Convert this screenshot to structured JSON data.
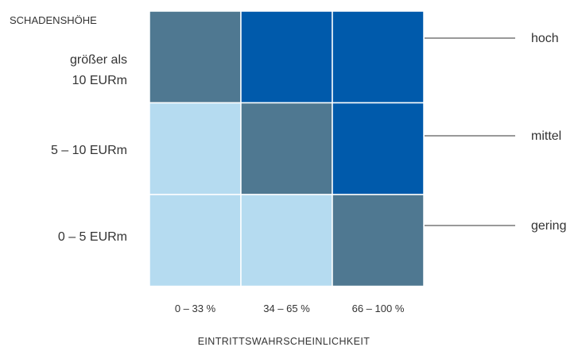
{
  "chart_data": {
    "type": "heatmap",
    "ylabel": "SCHADENSHÖHE",
    "xlabel": "EINTRITTSWAHRSCHEINLICHKEIT",
    "rows": [
      {
        "label_lines": [
          "größer als",
          "10 EURm"
        ]
      },
      {
        "label_lines": [
          "5 – 10 EURm"
        ]
      },
      {
        "label_lines": [
          "0 – 5 EURm"
        ]
      }
    ],
    "columns": [
      "0 – 33 %",
      "34 – 65 %",
      "66 – 100 %"
    ],
    "levels": [
      {
        "key": "hoch",
        "label": "hoch",
        "color": "#005aab"
      },
      {
        "key": "mittel",
        "label": "mittel",
        "color": "#4f7891"
      },
      {
        "key": "gering",
        "label": "gering",
        "color": "#b5dbf0"
      }
    ],
    "cells": [
      [
        "mittel",
        "hoch",
        "hoch"
      ],
      [
        "gering",
        "mittel",
        "hoch"
      ],
      [
        "gering",
        "gering",
        "mittel"
      ]
    ],
    "legend_placement": "right"
  }
}
